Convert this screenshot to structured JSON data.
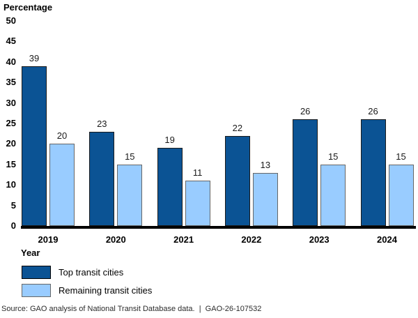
{
  "chart_data": {
    "type": "bar",
    "title": "",
    "ylabel": "Percentage",
    "xlabel": "Year",
    "categories": [
      "2019",
      "2020",
      "2021",
      "2022",
      "2023",
      "2024"
    ],
    "series": [
      {
        "name": "Top transit cities",
        "color": "#0B5394",
        "border_color": "#1a1a1a",
        "values": [
          39,
          23,
          19,
          22,
          26,
          26
        ]
      },
      {
        "name": "Remaining transit cities",
        "color": "#99CCFF",
        "border_color": "#666666",
        "values": [
          20,
          15,
          11,
          13,
          15,
          15
        ]
      }
    ],
    "ylim": [
      0,
      50
    ],
    "yticks": [
      0,
      5,
      10,
      15,
      20,
      25,
      30,
      35,
      40,
      45,
      50
    ],
    "grid": false,
    "data_labels": true,
    "legend_position": "below-left"
  },
  "source_line": "Source: GAO analysis of National Transit Database data.  |  GAO-26-107532"
}
